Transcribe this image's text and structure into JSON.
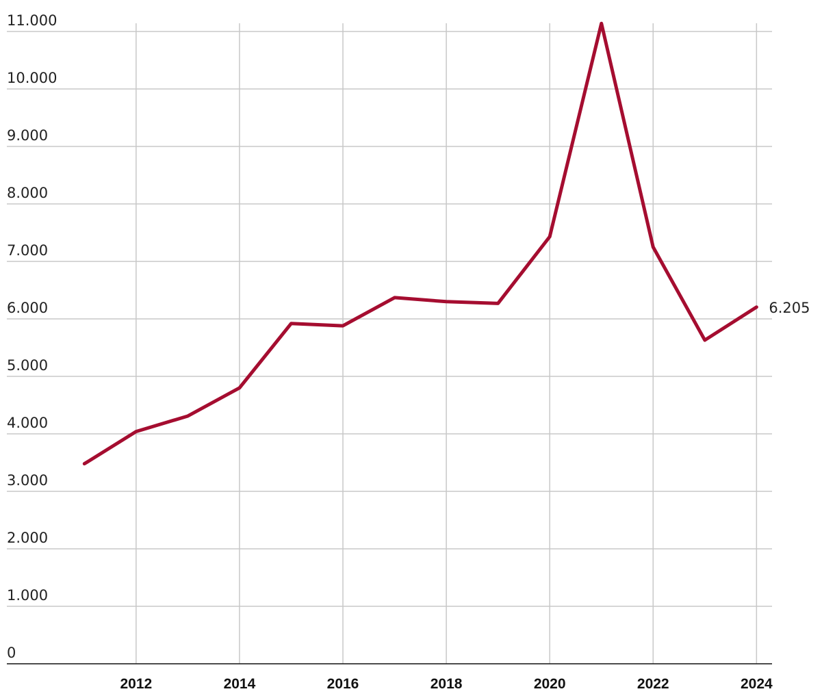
{
  "chart_data": {
    "type": "line",
    "x": [
      2011,
      2012,
      2013,
      2014,
      2015,
      2016,
      2017,
      2018,
      2019,
      2020,
      2021,
      2022,
      2023,
      2024
    ],
    "series": [
      {
        "color": "#a50d30",
        "values": [
          3480,
          4040,
          4310,
          4800,
          5920,
          5880,
          6370,
          6300,
          6270,
          7430,
          11140,
          7250,
          5630,
          6205
        ],
        "value_labels": [
          null,
          null,
          null,
          null,
          null,
          null,
          null,
          null,
          null,
          null,
          null,
          null,
          null,
          "6.205"
        ]
      }
    ],
    "xlim": [
      2009.5,
      2024.3
    ],
    "xticks": [
      2012,
      2014,
      2016,
      2018,
      2020,
      2022,
      2024
    ],
    "ylim": [
      0,
      11000
    ],
    "yticks": [
      0,
      {
        "value": 1000,
        "label": "1.000"
      },
      {
        "value": 2000,
        "label": "2.000"
      },
      {
        "value": 3000,
        "label": "3.000"
      },
      {
        "value": 4000,
        "label": "4.000"
      },
      {
        "value": 5000,
        "label": "5.000"
      },
      {
        "value": 6000,
        "label": "6.000"
      },
      {
        "value": 7000,
        "label": "7.000"
      },
      {
        "value": 8000,
        "label": "8.000"
      },
      {
        "value": 9000,
        "label": "9.000"
      },
      {
        "value": 10000,
        "label": "10.000"
      },
      {
        "value": 11000,
        "label": "11.000"
      }
    ],
    "grid": true
  }
}
